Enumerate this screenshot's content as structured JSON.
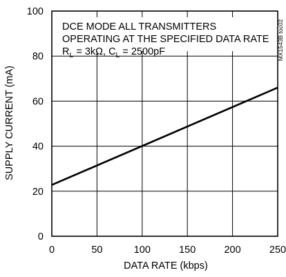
{
  "chart_data": {
    "type": "line",
    "title": "",
    "xlabel": "DATA RATE (kbps)",
    "ylabel": "SUPPLY CURRENT (mA)",
    "xlim": [
      0,
      250
    ],
    "ylim": [
      0,
      100
    ],
    "xticks": [
      0,
      50,
      100,
      150,
      200,
      250
    ],
    "yticks": [
      0,
      20,
      40,
      60,
      80,
      100
    ],
    "x_tick_labels": [
      "0",
      "50",
      "100",
      "150",
      "200",
      "250"
    ],
    "y_tick_labels": [
      "0",
      "20",
      "40",
      "60",
      "80",
      "100"
    ],
    "grid": true,
    "annotation": {
      "line1": "DCE MODE ALL TRANSMITTERS",
      "line2": "OPERATING AT THE SPECIFIED DATA RATE",
      "line3": {
        "rl_symbol": "R",
        "rl_sub": "L",
        "rl_value": " = 3kΩ, C",
        "cl_sub": "L",
        "cl_value": " = 2500pF"
      }
    },
    "figure_id": "MX1543B toc02",
    "series": [
      {
        "x": [
          0,
          250
        ],
        "y": [
          22.8,
          66.0
        ]
      }
    ]
  }
}
